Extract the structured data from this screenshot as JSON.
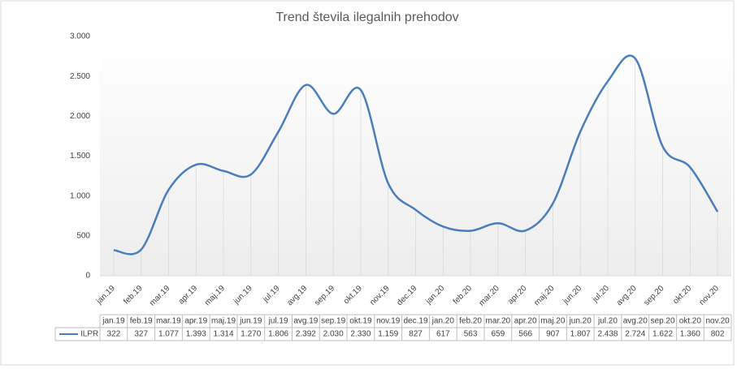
{
  "chart_data": {
    "type": "line",
    "title": "Trend števila ilegalnih prehodov",
    "categories": [
      "jan.19",
      "feb.19",
      "mar.19",
      "apr.19",
      "maj.19",
      "jun.19",
      "jul.19",
      "avg.19",
      "sep.19",
      "okt.19",
      "nov.19",
      "dec.19",
      "jan.20",
      "feb.20",
      "mar.20",
      "apr.20",
      "maj.20",
      "jun.20",
      "jul.20",
      "avg.20",
      "sep.20",
      "okt.20",
      "nov.20"
    ],
    "series": [
      {
        "name": "ILPR",
        "color": "#4a7ebb",
        "values": [
          322,
          327,
          1077,
          1393,
          1314,
          1270,
          1806,
          2392,
          2030,
          2330,
          1159,
          827,
          617,
          563,
          659,
          566,
          907,
          1807,
          2438,
          2724,
          1622,
          1360,
          802
        ],
        "value_labels": [
          "322",
          "327",
          "1.077",
          "1.393",
          "1.314",
          "1.270",
          "1.806",
          "2.392",
          "2.030",
          "2.330",
          "1.159",
          "827",
          "617",
          "563",
          "659",
          "566",
          "907",
          "1.807",
          "2.438",
          "2.724",
          "1.622",
          "1.360",
          "802"
        ]
      }
    ],
    "ylim": [
      0,
      3000
    ],
    "yticks": [
      0,
      500,
      {
        "value": 1000,
        "label": "1.000"
      },
      {
        "value": 1500,
        "label": "1.500"
      },
      {
        "value": 2000,
        "label": "2.000"
      },
      {
        "value": 2500,
        "label": "2.500"
      },
      {
        "value": 3000,
        "label": "3.000"
      }
    ],
    "smooth": true,
    "drop_lines": true
  }
}
